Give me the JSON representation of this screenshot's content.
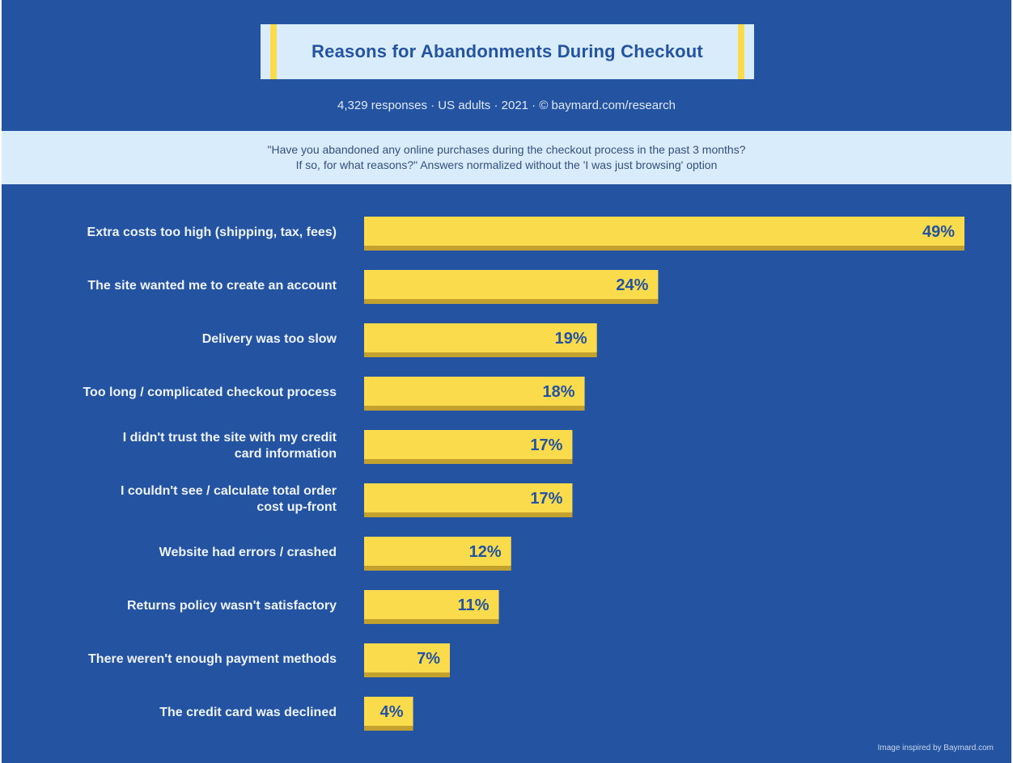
{
  "title": "Reasons for Abandonments During Checkout",
  "meta": "4,329 responses · US adults · 2021 · © baymard.com/research",
  "question": {
    "line1": "\"Have you abandoned any online purchases during the checkout process in the past 3 months?",
    "line2": "If so, for what reasons?\" Answers normalized without the 'I was just browsing' option"
  },
  "footer_credit": "Image inspired by Baymard.com",
  "colors": {
    "background": "#2353a1",
    "bar": "#f9db4b",
    "bar_shadow": "#c3a12e",
    "panel": "#d9ecfb"
  },
  "chart_data": {
    "type": "bar",
    "orientation": "horizontal",
    "categories": [
      [
        "Extra costs too high (shipping, tax, fees)"
      ],
      [
        "The site wanted me to create an account"
      ],
      [
        "Delivery was too slow"
      ],
      [
        "Too long / complicated checkout process"
      ],
      [
        "I didn't trust the site with my credit",
        "card information"
      ],
      [
        "I couldn't see / calculate total order",
        "cost up-front"
      ],
      [
        "Website had errors / crashed"
      ],
      [
        "Returns policy wasn't satisfactory"
      ],
      [
        "There weren't enough payment methods"
      ],
      [
        "The credit card was declined"
      ]
    ],
    "values": [
      49,
      24,
      19,
      18,
      17,
      17,
      12,
      11,
      7,
      4
    ],
    "value_labels": [
      "49%",
      "24%",
      "19%",
      "18%",
      "17%",
      "17%",
      "12%",
      "11%",
      "7%",
      "4%"
    ],
    "title": "Reasons for Abandonments During Checkout",
    "xlabel": "",
    "ylabel": "",
    "xlim": [
      0,
      49
    ],
    "grid": false
  }
}
